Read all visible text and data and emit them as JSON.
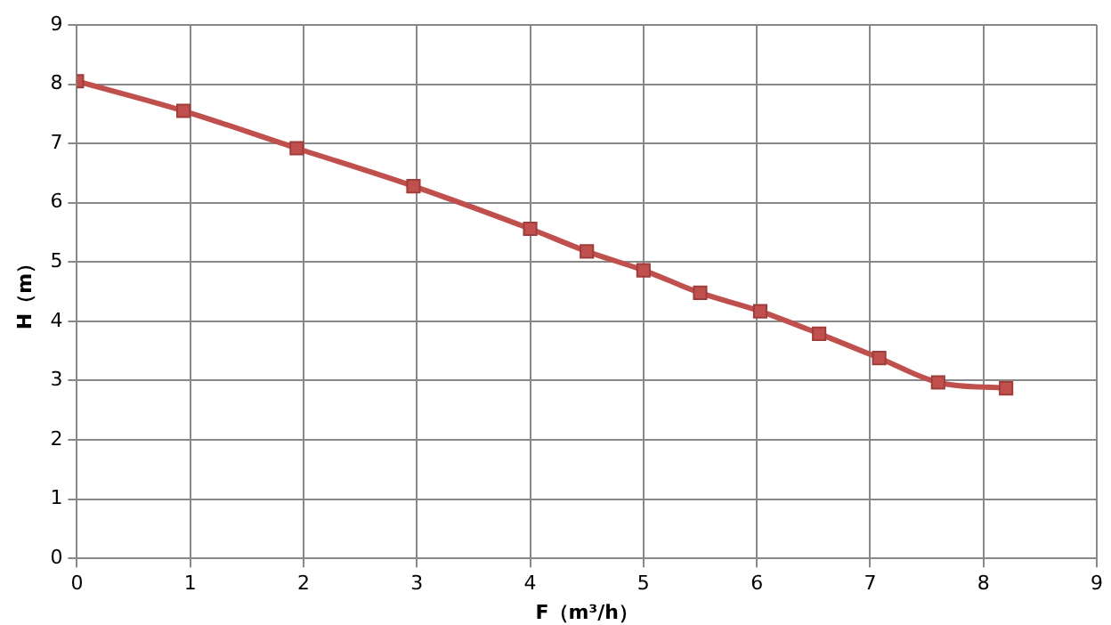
{
  "chart_data": {
    "type": "line",
    "xlabel": "F（m³/h）",
    "ylabel": "H（m）",
    "x": [
      0,
      0.94,
      1.94,
      2.97,
      4.0,
      4.5,
      5.0,
      5.5,
      6.03,
      6.55,
      7.08,
      7.6,
      8.2
    ],
    "series": [
      {
        "color": "#c0504d",
        "values": [
          8.05,
          7.55,
          6.92,
          6.28,
          5.56,
          5.18,
          4.86,
          4.48,
          4.17,
          3.79,
          3.38,
          2.97,
          2.87
        ]
      }
    ],
    "xlim": [
      0,
      9
    ],
    "xticks": [
      0,
      1,
      2,
      3,
      4,
      5,
      6,
      7,
      8,
      9
    ],
    "ylim": [
      0,
      9
    ],
    "yticks": [
      0,
      1,
      2,
      3,
      4,
      5,
      6,
      7,
      8,
      9
    ],
    "grid": true,
    "legend": false,
    "marker": "square",
    "line_style": "solid"
  }
}
